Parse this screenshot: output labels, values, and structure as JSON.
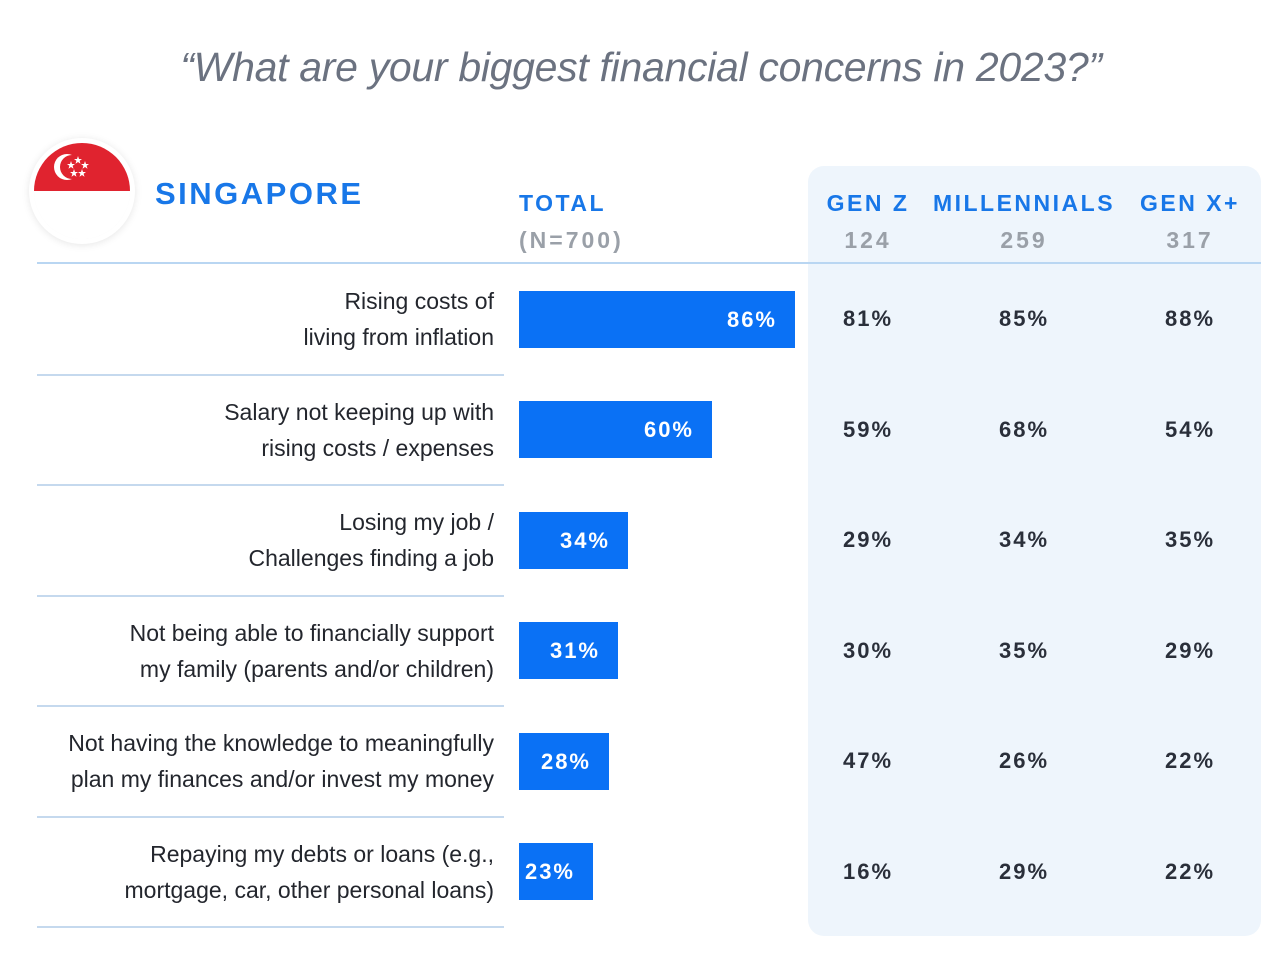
{
  "title": "“What are your biggest financial concerns in 2023?”",
  "country": "SINGAPORE",
  "colors": {
    "accent": "#1877e8",
    "bar": "#0a71f5",
    "panel": "#eef5fc",
    "flag_red": "#e0232f",
    "flag_white": "#ffffff"
  },
  "flag_icon": "singapore-flag-icon",
  "columns": {
    "total": {
      "label": "TOTAL",
      "sub": "(N=700)"
    },
    "gen_z": {
      "label": "GEN Z",
      "sub": "124"
    },
    "millennials": {
      "label": "MILLENNIALS",
      "sub": "259"
    },
    "gen_x": {
      "label": "GEN X+",
      "sub": "317"
    }
  },
  "chart_data": {
    "type": "bar",
    "orientation": "horizontal",
    "title": "“What are your biggest financial concerns in 2023?”",
    "xlim": [
      0,
      100
    ],
    "unit": "%",
    "categories": [
      [
        "Rising costs of",
        "living from inflation"
      ],
      [
        "Salary not keeping up with",
        "rising costs / expenses"
      ],
      [
        "Losing my job /",
        "Challenges finding a job"
      ],
      [
        "Not being able to financially support",
        "my family (parents and/or children)"
      ],
      [
        "Not having the knowledge to meaningfully",
        "plan my finances and/or invest my money"
      ],
      [
        "Repaying my debts or loans (e.g.,",
        "mortgage, car, other personal loans)"
      ]
    ],
    "values": [
      86,
      60,
      34,
      31,
      28,
      23
    ],
    "value_labels": [
      "86%",
      "60%",
      "34%",
      "31%",
      "28%",
      "23%"
    ],
    "breakdown": [
      {
        "name": "GEN Z",
        "values": [
          81,
          59,
          29,
          30,
          47,
          16
        ],
        "labels": [
          "81%",
          "59%",
          "29%",
          "30%",
          "47%",
          "16%"
        ]
      },
      {
        "name": "MILLENNIALS",
        "values": [
          85,
          68,
          34,
          35,
          26,
          29
        ],
        "labels": [
          "85%",
          "68%",
          "34%",
          "35%",
          "26%",
          "29%"
        ]
      },
      {
        "name": "GEN X+",
        "values": [
          88,
          54,
          35,
          29,
          22,
          22
        ],
        "labels": [
          "88%",
          "54%",
          "35%",
          "29%",
          "22%",
          "22%"
        ]
      }
    ]
  }
}
